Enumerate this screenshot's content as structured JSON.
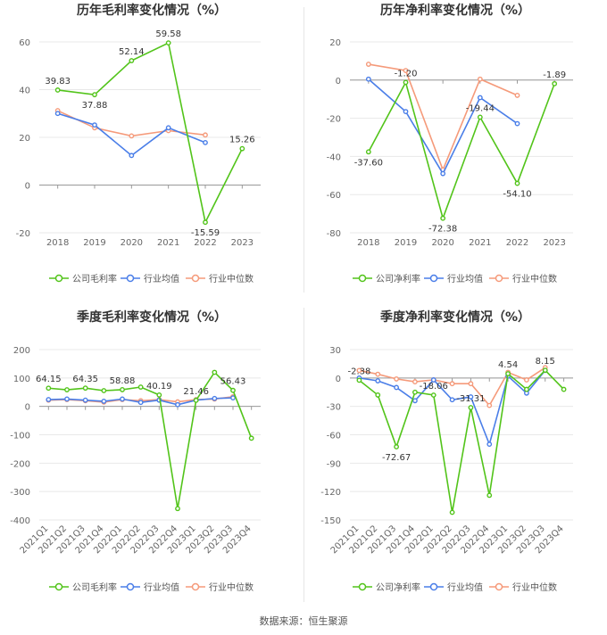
{
  "source": "数据来源：恒生聚源",
  "colors": {
    "company": "#52c41a",
    "avg": "#4a7ee8",
    "median": "#f59a7a",
    "grid": "#e8e8e8",
    "axis": "#999999",
    "text": "#666666"
  },
  "chart_data": [
    {
      "type": "line",
      "title": "历年毛利率变化情况（%）",
      "categories": [
        "2018",
        "2019",
        "2020",
        "2021",
        "2022",
        "2023"
      ],
      "ylim": [
        -20,
        60
      ],
      "yticks": [
        -20,
        0,
        20,
        40,
        60
      ],
      "series": [
        {
          "name": "公司毛利率",
          "values": [
            39.83,
            37.88,
            52.14,
            59.58,
            -15.59,
            15.26
          ]
        },
        {
          "name": "行业均值",
          "values": [
            30.0,
            25.2,
            12.4,
            24.0,
            17.8,
            null
          ]
        },
        {
          "name": "行业中位数",
          "values": [
            31.2,
            24.0,
            20.6,
            22.8,
            21.0,
            null
          ]
        }
      ],
      "labels": [
        {
          "i": 0,
          "text": "39.83"
        },
        {
          "i": 1,
          "text": "37.88"
        },
        {
          "i": 2,
          "text": "52.14"
        },
        {
          "i": 3,
          "text": "59.58"
        },
        {
          "i": 4,
          "text": "-15.59"
        },
        {
          "i": 5,
          "text": "15.26"
        }
      ],
      "legend": "bottom"
    },
    {
      "type": "line",
      "title": "历年净利率变化情况（%）",
      "categories": [
        "2018",
        "2019",
        "2020",
        "2021",
        "2022",
        "2023"
      ],
      "ylim": [
        -80,
        20
      ],
      "yticks": [
        -80,
        -60,
        -40,
        -20,
        0,
        20
      ],
      "series": [
        {
          "name": "公司净利率",
          "values": [
            -37.6,
            -1.2,
            -72.38,
            -19.44,
            -54.1,
            -1.89
          ]
        },
        {
          "name": "行业均值",
          "values": [
            0.5,
            -16.5,
            -49.0,
            -9.2,
            -22.8,
            null
          ]
        },
        {
          "name": "行业中位数",
          "values": [
            8.3,
            5.0,
            -47.0,
            0.5,
            -8.0,
            null
          ]
        }
      ],
      "labels": [
        {
          "i": 0,
          "text": "-37.60"
        },
        {
          "i": 1,
          "text": "-1.20"
        },
        {
          "i": 2,
          "text": "-72.38"
        },
        {
          "i": 3,
          "text": "-19.44"
        },
        {
          "i": 4,
          "text": "-54.10"
        },
        {
          "i": 5,
          "text": "-1.89"
        }
      ],
      "legend": "bottom"
    },
    {
      "type": "line",
      "title": "季度毛利率变化情况（%）",
      "categories": [
        "2021Q1",
        "2021Q2",
        "2021Q3",
        "2021Q4",
        "2022Q1",
        "2022Q2",
        "2022Q3",
        "2022Q4",
        "2023Q1",
        "2023Q2",
        "2023Q3",
        "2023Q4"
      ],
      "ylim": [
        -400,
        200
      ],
      "yticks": [
        -400,
        -300,
        -200,
        -100,
        0,
        100,
        200
      ],
      "series": [
        {
          "name": "公司毛利率",
          "values": [
            64.15,
            58.5,
            64.35,
            55.5,
            58.88,
            68.0,
            40.19,
            -360.0,
            21.46,
            120.0,
            56.43,
            -112.0
          ]
        },
        {
          "name": "行业均值",
          "values": [
            24.0,
            26.0,
            22.0,
            18.0,
            26.0,
            14.0,
            22.0,
            6.0,
            22.0,
            28.0,
            30.0,
            null
          ]
        },
        {
          "name": "行业中位数",
          "values": [
            22.0,
            24.0,
            20.0,
            15.0,
            24.0,
            20.0,
            24.0,
            16.0,
            24.0,
            26.0,
            34.0,
            null
          ]
        }
      ],
      "labels": [
        {
          "i": 0,
          "text": "64.15"
        },
        {
          "i": 2,
          "text": "64.35"
        },
        {
          "i": 4,
          "text": "58.88"
        },
        {
          "i": 6,
          "text": "40.19"
        },
        {
          "i": 8,
          "text": "21.46"
        },
        {
          "i": 10,
          "text": "56.43"
        }
      ],
      "legend": "bottom"
    },
    {
      "type": "line",
      "title": "季度净利率变化情况（%）",
      "categories": [
        "2021Q1",
        "2021Q2",
        "2021Q3",
        "2021Q4",
        "2022Q1",
        "2022Q2",
        "2022Q3",
        "2022Q4",
        "2023Q1",
        "2023Q2",
        "2023Q3",
        "2023Q4"
      ],
      "ylim": [
        -150,
        30
      ],
      "yticks": [
        -150,
        -120,
        -90,
        -60,
        -30,
        0,
        30
      ],
      "series": [
        {
          "name": "公司净利率",
          "values": [
            -2.38,
            -18.0,
            -72.67,
            -15.0,
            -18.06,
            -142.0,
            -31.31,
            -124.0,
            4.54,
            -12.0,
            8.15,
            -12.0
          ]
        },
        {
          "name": "行业均值",
          "values": [
            0.0,
            -3.0,
            -10.0,
            -24.0,
            -2.0,
            -23.0,
            -20.0,
            -70.0,
            2.0,
            -16.0,
            8.0,
            null
          ]
        },
        {
          "name": "行业中位数",
          "values": [
            8.0,
            4.0,
            -1.0,
            -4.0,
            -2.0,
            -6.0,
            -6.0,
            -29.0,
            6.0,
            -2.0,
            11.0,
            null
          ]
        }
      ],
      "labels": [
        {
          "i": 0,
          "text": "-2.38"
        },
        {
          "i": 2,
          "text": "-72.67"
        },
        {
          "i": 4,
          "text": "-18.06"
        },
        {
          "i": 6,
          "text": "-31.31"
        },
        {
          "i": 8,
          "text": "4.54"
        },
        {
          "i": 10,
          "text": "8.15"
        }
      ],
      "legend": "bottom"
    }
  ]
}
